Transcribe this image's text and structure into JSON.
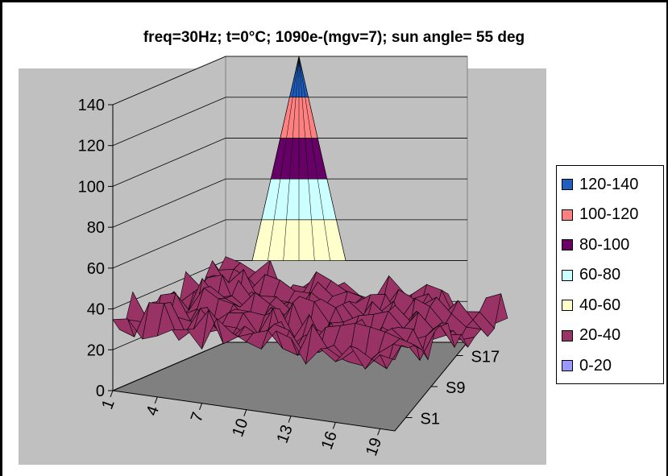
{
  "chart_data": {
    "type": "surface",
    "title": "freq=30Hz; t=0°C; 1090e-(mgv=7); sun angle= 55 deg",
    "y_ticks": [
      "0",
      "20",
      "40",
      "60",
      "80",
      "100",
      "120",
      "140"
    ],
    "ylim": [
      0,
      140
    ],
    "x_ticks": [
      "1",
      "4",
      "7",
      "10",
      "13",
      "16",
      "19"
    ],
    "depth_ticks": [
      "S1",
      "S9",
      "S17"
    ],
    "legend": [
      {
        "label": "120-140",
        "color": "#1f5fbf"
      },
      {
        "label": "100-120",
        "color": "#ff8080"
      },
      {
        "label": "80-100",
        "color": "#660066"
      },
      {
        "label": "60-80",
        "color": "#ccffff"
      },
      {
        "label": "40-60",
        "color": "#ffffcc"
      },
      {
        "label": "20-40",
        "color": "#993366"
      },
      {
        "label": "0-20",
        "color": "#9999ff"
      }
    ],
    "peak_value": 140,
    "baseline_range": [
      25,
      45
    ],
    "grid": true,
    "legend_position": "right"
  }
}
